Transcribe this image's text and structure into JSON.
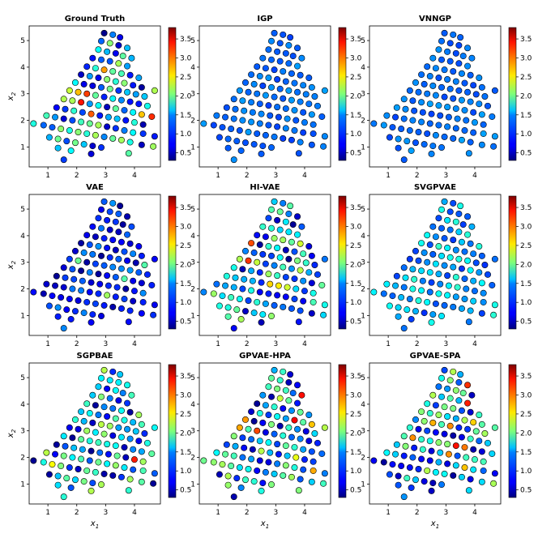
{
  "chart_data": {
    "type": "scatter",
    "xlim": [
      0.35,
      4.9
    ],
    "ylim": [
      0.25,
      5.55
    ],
    "xticks": [
      1,
      2,
      3,
      4
    ],
    "yticks": [
      1,
      2,
      3,
      4,
      5
    ],
    "xlabel_main": "x",
    "xlabel_sub": "1",
    "ylabel_main": "x",
    "ylabel_sub": "2",
    "colorbar": {
      "colormap": "jet",
      "vmin": 0.3,
      "vmax": 3.8,
      "ticks": [
        "0.5",
        "1.0",
        "1.5",
        "2.0",
        "2.5",
        "3.0",
        "3.5"
      ]
    },
    "points": [
      [
        2.95,
        5.28
      ],
      [
        3.25,
        5.22
      ],
      [
        3.5,
        5.12
      ],
      [
        2.85,
        4.98
      ],
      [
        3.15,
        4.9
      ],
      [
        3.45,
        4.82
      ],
      [
        3.75,
        4.72
      ],
      [
        2.75,
        4.66
      ],
      [
        3.05,
        4.58
      ],
      [
        3.35,
        4.52
      ],
      [
        3.6,
        4.42
      ],
      [
        3.9,
        4.34
      ],
      [
        2.55,
        4.34
      ],
      [
        2.85,
        4.28
      ],
      [
        3.15,
        4.22
      ],
      [
        3.45,
        4.14
      ],
      [
        3.75,
        4.04
      ],
      [
        2.35,
        4.02
      ],
      [
        2.65,
        3.96
      ],
      [
        2.95,
        3.9
      ],
      [
        3.25,
        3.84
      ],
      [
        3.55,
        3.76
      ],
      [
        3.85,
        3.7
      ],
      [
        4.15,
        3.6
      ],
      [
        2.15,
        3.72
      ],
      [
        2.45,
        3.66
      ],
      [
        2.75,
        3.6
      ],
      [
        3.05,
        3.54
      ],
      [
        3.35,
        3.46
      ],
      [
        3.65,
        3.4
      ],
      [
        3.95,
        3.32
      ],
      [
        4.25,
        3.24
      ],
      [
        4.7,
        3.12
      ],
      [
        1.95,
        3.42
      ],
      [
        2.25,
        3.36
      ],
      [
        2.55,
        3.3
      ],
      [
        2.85,
        3.24
      ],
      [
        3.15,
        3.18
      ],
      [
        3.45,
        3.12
      ],
      [
        3.75,
        3.06
      ],
      [
        4.05,
        2.98
      ],
      [
        4.35,
        2.9
      ],
      [
        1.75,
        3.12
      ],
      [
        2.05,
        3.06
      ],
      [
        2.35,
        3.0
      ],
      [
        2.65,
        2.94
      ],
      [
        2.95,
        2.88
      ],
      [
        3.25,
        2.82
      ],
      [
        3.55,
        2.76
      ],
      [
        3.85,
        2.7
      ],
      [
        4.15,
        2.62
      ],
      [
        4.45,
        2.54
      ],
      [
        1.55,
        2.8
      ],
      [
        1.85,
        2.74
      ],
      [
        2.15,
        2.68
      ],
      [
        2.45,
        2.62
      ],
      [
        2.75,
        2.56
      ],
      [
        3.05,
        2.5
      ],
      [
        3.35,
        2.44
      ],
      [
        3.65,
        2.38
      ],
      [
        3.95,
        2.3
      ],
      [
        4.25,
        2.22
      ],
      [
        4.6,
        2.14
      ],
      [
        1.3,
        2.48
      ],
      [
        1.6,
        2.42
      ],
      [
        1.9,
        2.36
      ],
      [
        2.2,
        2.3
      ],
      [
        2.5,
        2.24
      ],
      [
        2.8,
        2.18
      ],
      [
        3.1,
        2.12
      ],
      [
        3.4,
        2.06
      ],
      [
        3.7,
        2.0
      ],
      [
        4.0,
        1.92
      ],
      [
        4.3,
        1.84
      ],
      [
        0.95,
        2.18
      ],
      [
        1.25,
        2.12
      ],
      [
        1.55,
        2.06
      ],
      [
        1.85,
        2.0
      ],
      [
        2.15,
        1.94
      ],
      [
        2.45,
        1.88
      ],
      [
        2.75,
        1.82
      ],
      [
        3.05,
        1.76
      ],
      [
        3.35,
        1.7
      ],
      [
        3.65,
        1.62
      ],
      [
        3.95,
        1.54
      ],
      [
        4.3,
        1.5
      ],
      [
        4.7,
        1.4
      ],
      [
        0.5,
        1.88
      ],
      [
        0.85,
        1.82
      ],
      [
        1.15,
        1.74
      ],
      [
        1.45,
        1.68
      ],
      [
        1.75,
        1.62
      ],
      [
        2.05,
        1.56
      ],
      [
        2.35,
        1.5
      ],
      [
        2.65,
        1.44
      ],
      [
        2.95,
        1.38
      ],
      [
        3.25,
        1.32
      ],
      [
        3.55,
        1.26
      ],
      [
        3.85,
        1.18
      ],
      [
        4.25,
        1.08
      ],
      [
        4.65,
        1.02
      ],
      [
        1.05,
        1.36
      ],
      [
        1.35,
        1.3
      ],
      [
        1.65,
        1.22
      ],
      [
        1.95,
        1.16
      ],
      [
        2.25,
        1.1
      ],
      [
        2.55,
        1.04
      ],
      [
        2.85,
        0.98
      ],
      [
        1.35,
        0.96
      ],
      [
        1.8,
        0.86
      ],
      [
        2.5,
        0.74
      ],
      [
        3.8,
        0.76
      ],
      [
        1.55,
        0.52
      ]
    ],
    "panels": [
      {
        "title": "Ground Truth"
      },
      {
        "title": "IGP"
      },
      {
        "title": "VNNGP"
      },
      {
        "title": "VAE"
      },
      {
        "title": "HI-VAE"
      },
      {
        "title": "SVGPVAE"
      },
      {
        "title": "SGPBAE"
      },
      {
        "title": "GPVAE-HPA"
      },
      {
        "title": "GPVAE-SPA"
      }
    ]
  }
}
